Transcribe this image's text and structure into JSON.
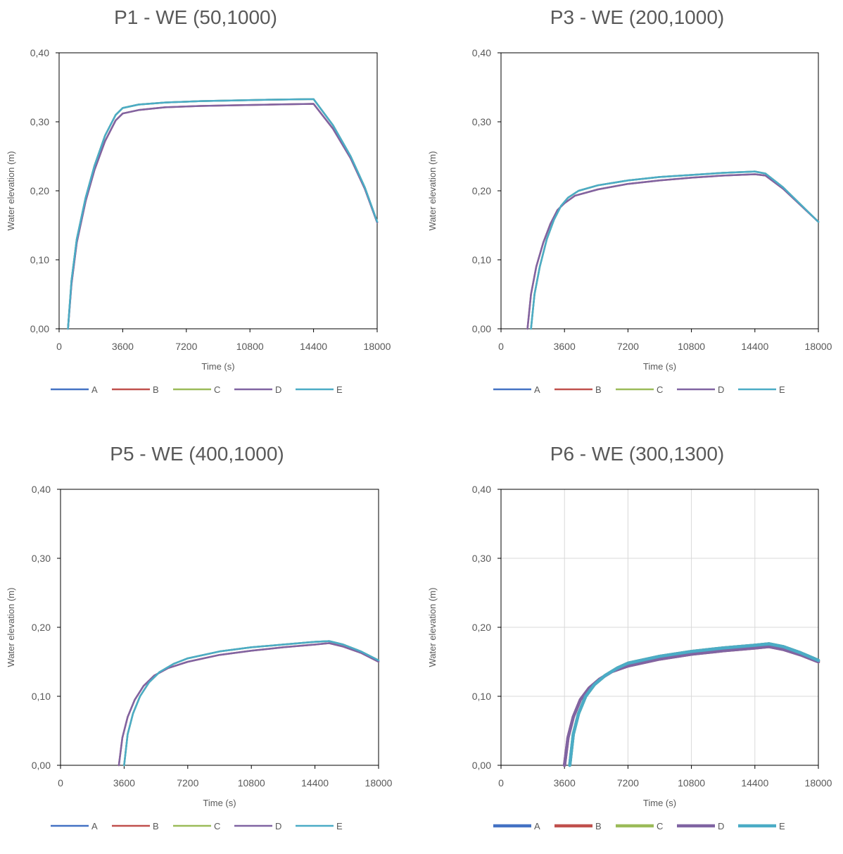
{
  "chart_data": [
    {
      "type": "line",
      "title": "P1 - WE (50,1000)",
      "xlabel": "Time (s)",
      "ylabel": "Water elevation (m)",
      "xlim": [
        0,
        18000
      ],
      "ylim": [
        0,
        0.4
      ],
      "x_ticks": [
        "0",
        "3600",
        "7200",
        "10800",
        "14400",
        "18000"
      ],
      "y_ticks": [
        "0,00",
        "0,10",
        "0,20",
        "0,30",
        "0,40"
      ],
      "grid": false,
      "legend_position": "bottom",
      "series": [
        {
          "name": "A",
          "color": "#4472C4",
          "x": [
            500,
            700,
            1000,
            1500,
            2000,
            2600,
            3200,
            3600,
            4500,
            6000,
            8000,
            10000,
            12000,
            14400,
            15500,
            16500,
            17300,
            18000
          ],
          "y": [
            0,
            0.07,
            0.13,
            0.19,
            0.236,
            0.28,
            0.31,
            0.32,
            0.325,
            0.328,
            0.33,
            0.331,
            0.332,
            0.333,
            0.295,
            0.25,
            0.205,
            0.155
          ]
        },
        {
          "name": "B",
          "color": "#C0504D",
          "x": [
            500,
            700,
            1000,
            1500,
            2000,
            2600,
            3200,
            3600,
            4500,
            6000,
            8000,
            10000,
            12000,
            14400,
            15500,
            16500,
            17300,
            18000
          ],
          "y": [
            0,
            0.065,
            0.125,
            0.185,
            0.23,
            0.272,
            0.302,
            0.312,
            0.317,
            0.321,
            0.323,
            0.324,
            0.325,
            0.326,
            0.29,
            0.247,
            0.203,
            0.154
          ]
        },
        {
          "name": "C",
          "color": "#9BBB59",
          "x": [
            500,
            700,
            1000,
            1500,
            2000,
            2600,
            3200,
            3600,
            4500,
            6000,
            8000,
            10000,
            12000,
            14400,
            15500,
            16500,
            17300,
            18000
          ],
          "y": [
            0,
            0.07,
            0.13,
            0.19,
            0.236,
            0.28,
            0.31,
            0.32,
            0.325,
            0.328,
            0.33,
            0.331,
            0.332,
            0.333,
            0.295,
            0.25,
            0.205,
            0.155
          ]
        },
        {
          "name": "D",
          "color": "#8064A2",
          "x": [
            500,
            700,
            1000,
            1500,
            2000,
            2600,
            3200,
            3600,
            4500,
            6000,
            8000,
            10000,
            12000,
            14400,
            15500,
            16500,
            17300,
            18000
          ],
          "y": [
            0,
            0.065,
            0.125,
            0.185,
            0.23,
            0.272,
            0.302,
            0.312,
            0.317,
            0.321,
            0.323,
            0.324,
            0.325,
            0.326,
            0.29,
            0.247,
            0.203,
            0.154
          ]
        },
        {
          "name": "E",
          "color": "#4BACC6",
          "x": [
            500,
            700,
            1000,
            1500,
            2000,
            2600,
            3200,
            3600,
            4500,
            6000,
            8000,
            10000,
            12000,
            14400,
            15500,
            16500,
            17300,
            18000
          ],
          "y": [
            0,
            0.07,
            0.13,
            0.19,
            0.236,
            0.28,
            0.31,
            0.32,
            0.325,
            0.328,
            0.33,
            0.331,
            0.332,
            0.333,
            0.295,
            0.25,
            0.205,
            0.155
          ]
        }
      ]
    },
    {
      "type": "line",
      "title": "P3 - WE (200,1000)",
      "xlabel": "Time (s)",
      "ylabel": "Water elevation (m)",
      "xlim": [
        0,
        18000
      ],
      "ylim": [
        0,
        0.4
      ],
      "x_ticks": [
        "0",
        "3600",
        "7200",
        "10800",
        "14400",
        "18000"
      ],
      "y_ticks": [
        "0,00",
        "0,10",
        "0,20",
        "0,30",
        "0,40"
      ],
      "grid": false,
      "legend_position": "bottom",
      "series": [
        {
          "name": "A",
          "color": "#4472C4",
          "x": [
            1700,
            1900,
            2200,
            2600,
            3000,
            3400,
            3800,
            4400,
            5500,
            7200,
            9000,
            10800,
            12600,
            14400,
            15000,
            16000,
            17000,
            18000
          ],
          "y": [
            0,
            0.05,
            0.09,
            0.13,
            0.158,
            0.178,
            0.19,
            0.2,
            0.208,
            0.215,
            0.22,
            0.223,
            0.226,
            0.228,
            0.225,
            0.205,
            0.18,
            0.155
          ]
        },
        {
          "name": "B",
          "color": "#C0504D",
          "x": [
            1500,
            1700,
            2000,
            2400,
            2800,
            3200,
            3600,
            4200,
            5500,
            7200,
            9000,
            10800,
            12600,
            14400,
            15000,
            16000,
            17000,
            18000
          ],
          "y": [
            0,
            0.05,
            0.09,
            0.125,
            0.152,
            0.172,
            0.182,
            0.193,
            0.202,
            0.21,
            0.215,
            0.219,
            0.222,
            0.224,
            0.222,
            0.203,
            0.179,
            0.155
          ]
        },
        {
          "name": "C",
          "color": "#9BBB59",
          "x": [
            1700,
            1900,
            2200,
            2600,
            3000,
            3400,
            3800,
            4400,
            5500,
            7200,
            9000,
            10800,
            12600,
            14400,
            15000,
            16000,
            17000,
            18000
          ],
          "y": [
            0,
            0.05,
            0.09,
            0.13,
            0.158,
            0.178,
            0.19,
            0.2,
            0.208,
            0.215,
            0.22,
            0.223,
            0.226,
            0.228,
            0.225,
            0.205,
            0.18,
            0.155
          ]
        },
        {
          "name": "D",
          "color": "#8064A2",
          "x": [
            1500,
            1700,
            2000,
            2400,
            2800,
            3200,
            3600,
            4200,
            5500,
            7200,
            9000,
            10800,
            12600,
            14400,
            15000,
            16000,
            17000,
            18000
          ],
          "y": [
            0,
            0.05,
            0.09,
            0.125,
            0.152,
            0.172,
            0.182,
            0.193,
            0.202,
            0.21,
            0.215,
            0.219,
            0.222,
            0.224,
            0.222,
            0.203,
            0.179,
            0.155
          ]
        },
        {
          "name": "E",
          "color": "#4BACC6",
          "x": [
            1700,
            1900,
            2200,
            2600,
            3000,
            3400,
            3800,
            4400,
            5500,
            7200,
            9000,
            10800,
            12600,
            14400,
            15000,
            16000,
            17000,
            18000
          ],
          "y": [
            0,
            0.05,
            0.09,
            0.13,
            0.158,
            0.178,
            0.19,
            0.2,
            0.208,
            0.215,
            0.22,
            0.223,
            0.226,
            0.228,
            0.225,
            0.205,
            0.18,
            0.155
          ]
        }
      ]
    },
    {
      "type": "line",
      "title": "P5 - WE (400,1000)",
      "xlabel": "Time (s)",
      "ylabel": "Water elevation (m)",
      "xlim": [
        0,
        18000
      ],
      "ylim": [
        0,
        0.4
      ],
      "x_ticks": [
        "0",
        "3600",
        "7200",
        "10800",
        "14400",
        "18000"
      ],
      "y_ticks": [
        "0,00",
        "0,10",
        "0,20",
        "0,30",
        "0,40"
      ],
      "grid": false,
      "legend_position": "bottom",
      "series": [
        {
          "name": "A",
          "color": "#4472C4",
          "x": [
            3600,
            3800,
            4100,
            4500,
            5000,
            5600,
            6400,
            7200,
            9000,
            10800,
            12600,
            14400,
            15200,
            16000,
            17000,
            18000
          ],
          "y": [
            0,
            0.045,
            0.075,
            0.1,
            0.12,
            0.135,
            0.147,
            0.155,
            0.165,
            0.171,
            0.175,
            0.179,
            0.18,
            0.175,
            0.165,
            0.152
          ]
        },
        {
          "name": "B",
          "color": "#C0504D",
          "x": [
            3300,
            3500,
            3800,
            4200,
            4700,
            5300,
            6100,
            7200,
            9000,
            10800,
            12600,
            14400,
            15200,
            16000,
            17000,
            18000
          ],
          "y": [
            0,
            0.04,
            0.07,
            0.095,
            0.115,
            0.13,
            0.141,
            0.15,
            0.16,
            0.166,
            0.171,
            0.175,
            0.177,
            0.172,
            0.163,
            0.15
          ]
        },
        {
          "name": "C",
          "color": "#9BBB59",
          "x": [
            3600,
            3800,
            4100,
            4500,
            5000,
            5600,
            6400,
            7200,
            9000,
            10800,
            12600,
            14400,
            15200,
            16000,
            17000,
            18000
          ],
          "y": [
            0,
            0.045,
            0.075,
            0.1,
            0.12,
            0.135,
            0.147,
            0.155,
            0.165,
            0.171,
            0.175,
            0.179,
            0.18,
            0.175,
            0.165,
            0.152
          ]
        },
        {
          "name": "D",
          "color": "#8064A2",
          "x": [
            3300,
            3500,
            3800,
            4200,
            4700,
            5300,
            6100,
            7200,
            9000,
            10800,
            12600,
            14400,
            15200,
            16000,
            17000,
            18000
          ],
          "y": [
            0,
            0.04,
            0.07,
            0.095,
            0.115,
            0.13,
            0.141,
            0.15,
            0.16,
            0.166,
            0.171,
            0.175,
            0.177,
            0.172,
            0.163,
            0.15
          ]
        },
        {
          "name": "E",
          "color": "#4BACC6",
          "x": [
            3600,
            3800,
            4100,
            4500,
            5000,
            5600,
            6400,
            7200,
            9000,
            10800,
            12600,
            14400,
            15200,
            16000,
            17000,
            18000
          ],
          "y": [
            0,
            0.045,
            0.075,
            0.1,
            0.12,
            0.135,
            0.147,
            0.155,
            0.165,
            0.171,
            0.175,
            0.179,
            0.18,
            0.175,
            0.165,
            0.152
          ]
        }
      ]
    },
    {
      "type": "line",
      "title": "P6 - WE (300,1300)",
      "xlabel": "Time (s)",
      "ylabel": "Water elevation (m)",
      "xlim": [
        0,
        18000
      ],
      "ylim": [
        0,
        0.4
      ],
      "x_ticks": [
        "0",
        "3600",
        "7200",
        "10800",
        "14400",
        "18000"
      ],
      "y_ticks": [
        "0,00",
        "0,10",
        "0,20",
        "0,30",
        "0,40"
      ],
      "grid": true,
      "legend_position": "bottom",
      "series": [
        {
          "name": "A",
          "color": "#4472C4",
          "x": [
            3900,
            4100,
            4400,
            4800,
            5300,
            5900,
            6600,
            7200,
            9000,
            10800,
            12600,
            14400,
            15200,
            16000,
            17000,
            18000
          ],
          "y": [
            0,
            0.045,
            0.075,
            0.1,
            0.117,
            0.13,
            0.141,
            0.148,
            0.158,
            0.165,
            0.17,
            0.174,
            0.176,
            0.172,
            0.163,
            0.152
          ]
        },
        {
          "name": "B",
          "color": "#C0504D",
          "x": [
            3600,
            3800,
            4100,
            4500,
            5000,
            5600,
            6300,
            7200,
            9000,
            10800,
            12600,
            14400,
            15200,
            16000,
            17000,
            18000
          ],
          "y": [
            0,
            0.04,
            0.07,
            0.095,
            0.112,
            0.125,
            0.136,
            0.144,
            0.154,
            0.161,
            0.166,
            0.17,
            0.172,
            0.168,
            0.16,
            0.15
          ]
        },
        {
          "name": "C",
          "color": "#9BBB59",
          "x": [
            3900,
            4100,
            4400,
            4800,
            5300,
            5900,
            6600,
            7200,
            9000,
            10800,
            12600,
            14400,
            15200,
            16000,
            17000,
            18000
          ],
          "y": [
            0,
            0.045,
            0.075,
            0.1,
            0.117,
            0.13,
            0.141,
            0.148,
            0.158,
            0.165,
            0.17,
            0.174,
            0.176,
            0.172,
            0.163,
            0.152
          ]
        },
        {
          "name": "D",
          "color": "#8064A2",
          "x": [
            3600,
            3800,
            4100,
            4500,
            5000,
            5600,
            6300,
            7200,
            9000,
            10800,
            12600,
            14400,
            15200,
            16000,
            17000,
            18000
          ],
          "y": [
            0,
            0.04,
            0.07,
            0.095,
            0.112,
            0.125,
            0.136,
            0.144,
            0.154,
            0.161,
            0.166,
            0.17,
            0.172,
            0.168,
            0.16,
            0.15
          ]
        },
        {
          "name": "E",
          "color": "#4BACC6",
          "x": [
            3900,
            4100,
            4400,
            4800,
            5300,
            5900,
            6600,
            7200,
            9000,
            10800,
            12600,
            14400,
            15200,
            16000,
            17000,
            18000
          ],
          "y": [
            0,
            0.045,
            0.075,
            0.1,
            0.117,
            0.13,
            0.141,
            0.148,
            0.158,
            0.165,
            0.17,
            0.174,
            0.176,
            0.172,
            0.163,
            0.152
          ]
        }
      ]
    }
  ]
}
